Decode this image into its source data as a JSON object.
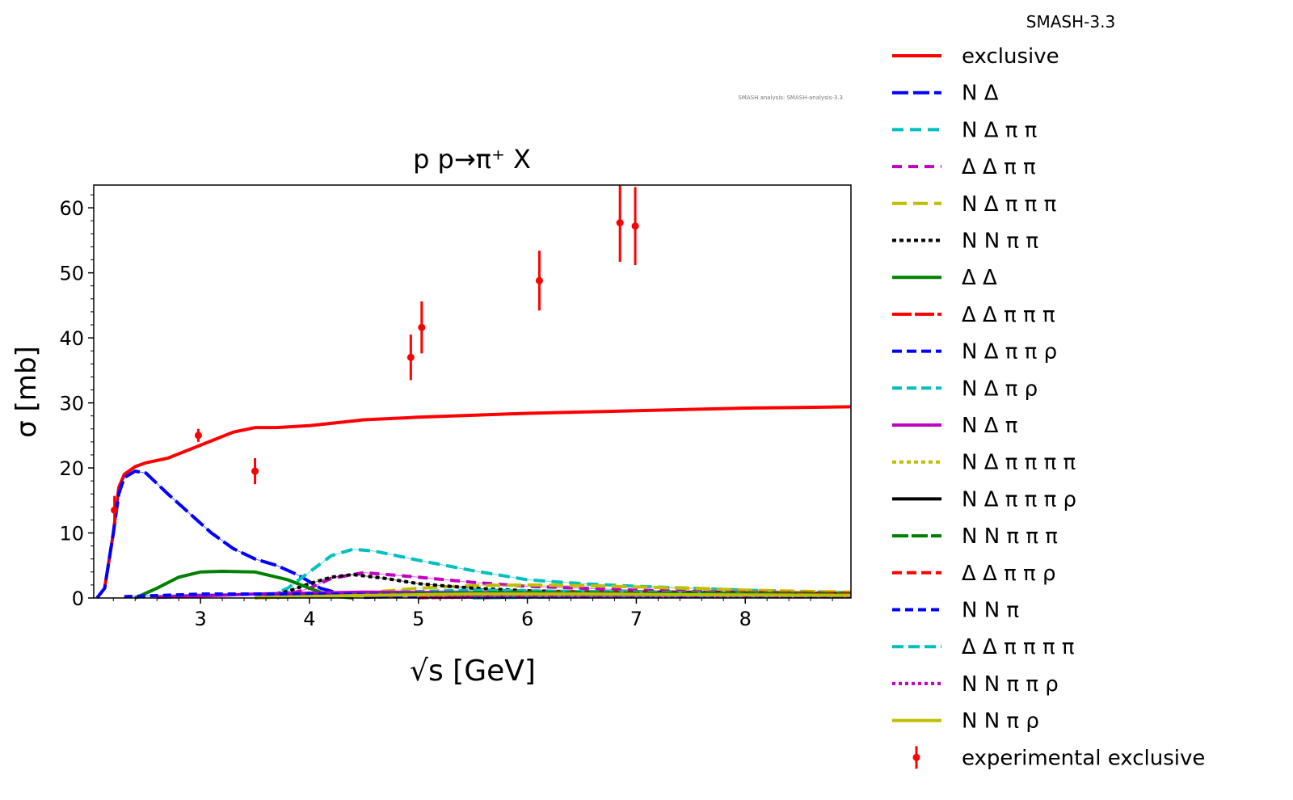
{
  "chart_data": {
    "type": "line",
    "title": "p p→π⁺ X",
    "xlabel": "√s [GeV]",
    "ylabel": "σ [mb]",
    "xlim": [
      2.02,
      8.97
    ],
    "ylim": [
      0,
      63.5
    ],
    "xticks": [
      3,
      4,
      5,
      6,
      7,
      8
    ],
    "yticks": [
      0,
      10,
      20,
      30,
      40,
      50,
      60
    ],
    "legend_title": "SMASH-3.3",
    "legend_placement": "outside-right",
    "annotation": "SMASH analysis: SMASH-analysis-3.3",
    "series": [
      {
        "name": "exclusive",
        "color": "#ff0000",
        "dash": "solid",
        "x": [
          2.05,
          2.12,
          2.2,
          2.25,
          2.3,
          2.4,
          2.5,
          2.7,
          3.0,
          3.3,
          3.5,
          3.7,
          4.0,
          4.5,
          5.0,
          5.5,
          6.0,
          6.5,
          7.0,
          7.5,
          8.0,
          8.5,
          8.97
        ],
        "y": [
          0,
          1.5,
          10,
          17,
          19,
          20.2,
          20.8,
          21.5,
          23.5,
          25.5,
          26.2,
          26.2,
          26.5,
          27.4,
          27.8,
          28.1,
          28.4,
          28.6,
          28.8,
          29.0,
          29.2,
          29.3,
          29.4
        ]
      },
      {
        "name": "N Δ",
        "color": "#0000ff",
        "dash": "20,6",
        "x": [
          2.05,
          2.12,
          2.2,
          2.25,
          2.3,
          2.4,
          2.5,
          2.7,
          2.9,
          3.1,
          3.3,
          3.5,
          3.7,
          3.9,
          4.1,
          4.3
        ],
        "y": [
          0,
          1.5,
          10,
          16,
          18.5,
          19.5,
          19.2,
          16,
          13,
          10,
          7.6,
          6,
          5,
          3.5,
          1.5,
          0.6
        ]
      },
      {
        "name": "N Δ π π",
        "color": "#00bfbf",
        "dash": "14,8",
        "x": [
          3.6,
          3.8,
          4.0,
          4.2,
          4.4,
          4.6,
          5.0,
          5.5,
          6.0,
          6.5,
          7.0,
          7.5,
          8.0,
          8.5,
          8.97
        ],
        "y": [
          0,
          1.5,
          4,
          6.5,
          7.5,
          7.2,
          5.8,
          4.2,
          2.8,
          2.2,
          1.8,
          1.5,
          1.2,
          1,
          0.8
        ]
      },
      {
        "name": "Δ Δ π π",
        "color": "#bf00bf",
        "dash": "12,8",
        "x": [
          3.7,
          4.0,
          4.2,
          4.5,
          5.0,
          5.5,
          6.0,
          7.0,
          8.0,
          8.97
        ],
        "y": [
          0,
          1.5,
          3,
          3.9,
          3.2,
          2.4,
          1.8,
          1.2,
          0.8,
          0.6
        ]
      },
      {
        "name": "N Δ π π π",
        "color": "#bfbf00",
        "dash": "18,8",
        "x": [
          3.5,
          4.0,
          4.5,
          5.0,
          5.5,
          6.0,
          6.5,
          7.0,
          7.5,
          8.0,
          8.97
        ],
        "y": [
          0,
          0.3,
          0.8,
          1.5,
          1.9,
          2.0,
          1.9,
          1.7,
          1.5,
          1.2,
          0.9
        ]
      },
      {
        "name": "N N π π",
        "color": "#000000",
        "dash": "5,4",
        "x": [
          3.5,
          3.8,
          4.0,
          4.2,
          4.4,
          4.7,
          5.0,
          5.5,
          6.0,
          7.0,
          8.0,
          8.97
        ],
        "y": [
          0,
          1,
          2.2,
          3.2,
          3.6,
          3,
          2.2,
          1.5,
          1.1,
          0.8,
          0.7,
          0.6
        ]
      },
      {
        "name": "Δ Δ",
        "color": "#008000",
        "dash": "solid",
        "x": [
          2.4,
          2.6,
          2.8,
          3.0,
          3.2,
          3.5,
          3.8,
          4.0,
          4.2,
          4.4
        ],
        "y": [
          0,
          1.5,
          3.2,
          4,
          4.1,
          4,
          2.8,
          1.5,
          0.3,
          0
        ]
      },
      {
        "name": "Δ Δ π π π",
        "color": "#ff0000",
        "dash": "24,4",
        "x": [
          4.5,
          5.5,
          6.5,
          7.5,
          8.97
        ],
        "y": [
          0.2,
          0.8,
          1.0,
          0.9,
          0.7
        ]
      },
      {
        "name": "N Δ π π ρ",
        "color": "#0000ff",
        "dash": "12,6",
        "x": [
          4.5,
          5.5,
          6.5,
          7.5,
          8.97
        ],
        "y": [
          0.1,
          0.5,
          0.8,
          0.8,
          0.6
        ]
      },
      {
        "name": "N Δ π ρ",
        "color": "#00bfbf",
        "dash": "12,6",
        "x": [
          3.5,
          4.5,
          5.5,
          6.5,
          7.5,
          8.97
        ],
        "y": [
          0.1,
          0.8,
          1.2,
          1.0,
          0.8,
          0.6
        ]
      },
      {
        "name": "N Δ π",
        "color": "#bf00bf",
        "dash": "solid",
        "x": [
          2.6,
          3.5,
          4.5,
          5.5,
          6.5,
          7.5,
          8.97
        ],
        "y": [
          0.1,
          0.6,
          0.9,
          0.8,
          0.6,
          0.5,
          0.4
        ]
      },
      {
        "name": "N Δ π π π π",
        "color": "#bfbf00",
        "dash": "5,4",
        "x": [
          5.0,
          6.0,
          7.0,
          8.0,
          8.97
        ],
        "y": [
          0.05,
          0.3,
          0.5,
          0.6,
          0.6
        ]
      },
      {
        "name": "N Δ π π π ρ",
        "color": "#000000",
        "dash": "solid",
        "x": [
          5.5,
          6.5,
          7.5,
          8.97
        ],
        "y": [
          0.05,
          0.3,
          0.5,
          0.6
        ]
      },
      {
        "name": "N N π π π",
        "color": "#008000",
        "dash": "20,4",
        "x": [
          3.5,
          4.5,
          5.5,
          6.5,
          7.5,
          8.97
        ],
        "y": [
          0.05,
          0.5,
          0.8,
          0.8,
          0.7,
          0.6
        ]
      },
      {
        "name": "Δ Δ π π ρ",
        "color": "#ff0000",
        "dash": "12,6",
        "x": [
          5.0,
          6.0,
          7.0,
          8.0,
          8.97
        ],
        "y": [
          0.05,
          0.3,
          0.5,
          0.5,
          0.5
        ]
      },
      {
        "name": "N N π",
        "color": "#0000ff",
        "dash": "10,6",
        "x": [
          2.3,
          3.0,
          4.0,
          5.0,
          6.0,
          7.0,
          8.97
        ],
        "y": [
          0.2,
          0.6,
          0.6,
          0.5,
          0.4,
          0.3,
          0.2
        ]
      },
      {
        "name": "Δ Δ π π π π",
        "color": "#00bfbf",
        "dash": "14,6",
        "x": [
          5.5,
          6.5,
          7.5,
          8.97
        ],
        "y": [
          0.02,
          0.2,
          0.3,
          0.4
        ]
      },
      {
        "name": "N N π π ρ",
        "color": "#bf00bf",
        "dash": "4,4",
        "x": [
          5.0,
          6.0,
          7.0,
          8.97
        ],
        "y": [
          0.05,
          0.2,
          0.3,
          0.3
        ]
      },
      {
        "name": "N N π ρ",
        "color": "#bfbf00",
        "dash": "solid",
        "x": [
          3.5,
          4.5,
          5.5,
          6.5,
          7.5,
          8.97
        ],
        "y": [
          0.05,
          0.4,
          0.6,
          0.6,
          0.5,
          0.4
        ]
      }
    ],
    "experimental": {
      "name": "experimental exclusive",
      "color": "#ff0000",
      "x": [
        2.21,
        2.98,
        3.5,
        4.93,
        5.03,
        6.11,
        6.85,
        6.99
      ],
      "y": [
        13.5,
        25.0,
        19.5,
        37.0,
        41.6,
        48.8,
        57.7,
        57.2
      ],
      "yerr": [
        2.2,
        1.0,
        2.0,
        3.5,
        4.0,
        4.6,
        6.0,
        6.0
      ]
    }
  }
}
